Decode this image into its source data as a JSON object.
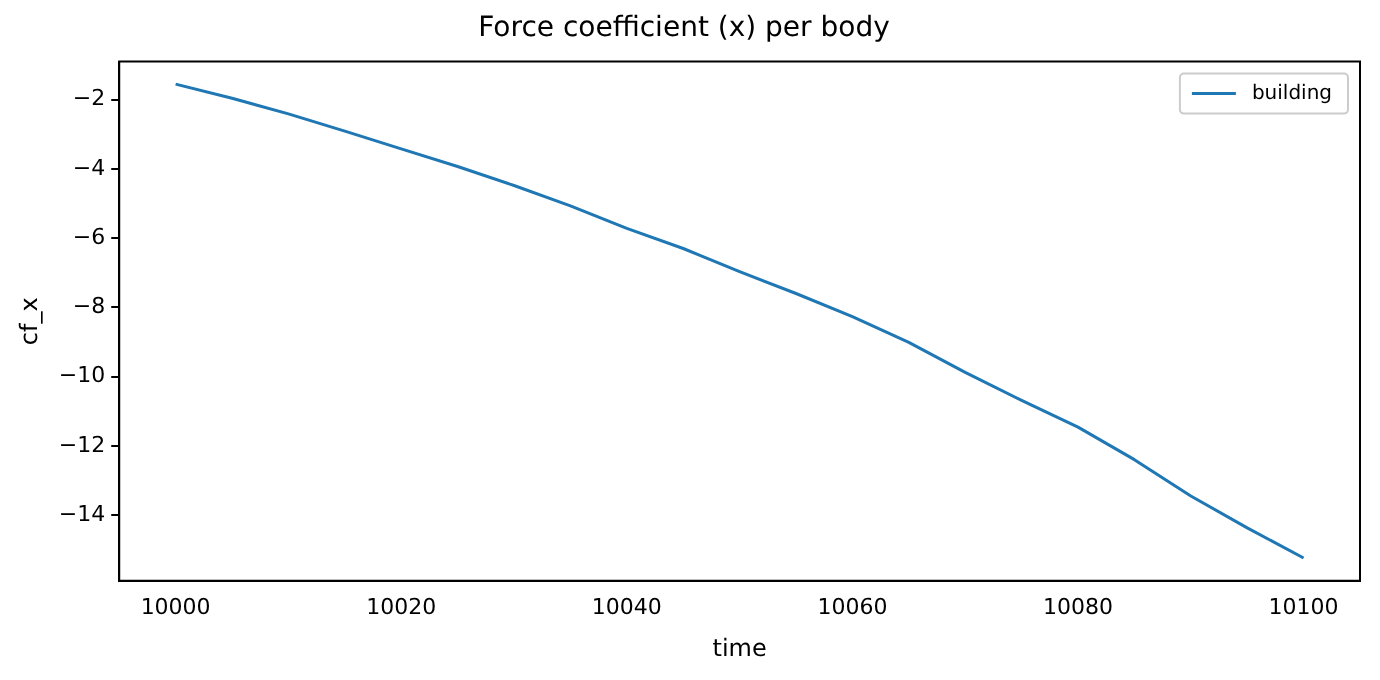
{
  "chart_data": {
    "type": "line",
    "title": "Force coefficient (x) per body",
    "xlabel": "time",
    "ylabel": "cf_x",
    "x": [
      10000,
      10005,
      10010,
      10015,
      10020,
      10025,
      10030,
      10035,
      10040,
      10045,
      10050,
      10055,
      10060,
      10065,
      10070,
      10075,
      10080,
      10085,
      10090,
      10095,
      10100
    ],
    "series": [
      {
        "name": "building",
        "color": "#1f77b4",
        "values": [
          -1.55,
          -1.96,
          -2.41,
          -2.91,
          -3.42,
          -3.93,
          -4.48,
          -5.07,
          -5.72,
          -6.3,
          -6.97,
          -7.6,
          -8.27,
          -9.01,
          -9.88,
          -10.69,
          -11.46,
          -12.4,
          -13.45,
          -14.37,
          -15.24
        ]
      }
    ],
    "xlim": [
      9995,
      10105
    ],
    "xticks": [
      10000,
      10020,
      10040,
      10060,
      10080,
      10100
    ],
    "ylim": [
      -15.9,
      -0.9
    ],
    "yticks": [
      {
        "value": -14,
        "label": "−14"
      },
      {
        "value": -12,
        "label": "−12"
      },
      {
        "value": -10,
        "label": "−10"
      },
      {
        "value": -8,
        "label": "−8"
      },
      {
        "value": -6,
        "label": "−6"
      },
      {
        "value": -4,
        "label": "−4"
      },
      {
        "value": -2,
        "label": "−2"
      }
    ],
    "grid": false,
    "legend": "top right",
    "marker": "none",
    "line_style": "solid"
  }
}
